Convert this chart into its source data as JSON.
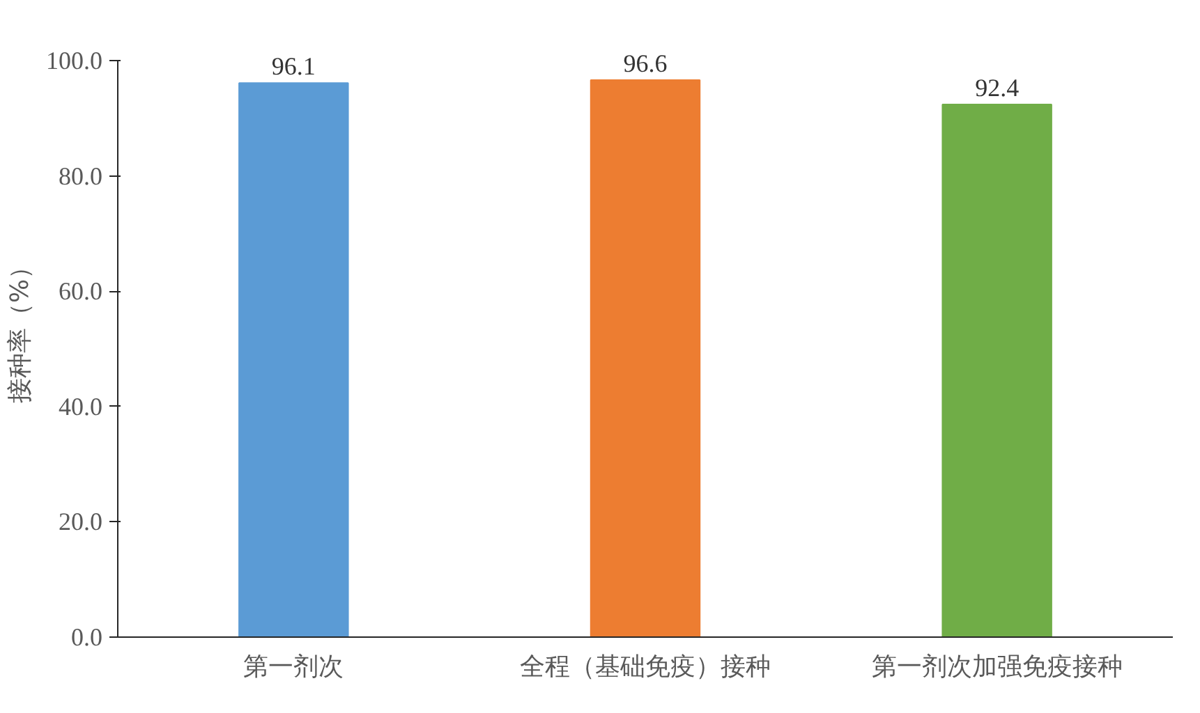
{
  "chart_data": {
    "type": "bar",
    "ylabel": "接种率（%）",
    "categories": [
      "第一剂次",
      "全程（基础免疫）接种",
      "第一剂次加强免疫接种"
    ],
    "values": [
      96.1,
      96.6,
      92.4
    ],
    "colors": [
      "#5b9bd5",
      "#ed7d31",
      "#70ad47"
    ],
    "ylim": [
      0,
      100
    ],
    "yticks": [
      {
        "value": 0,
        "label": "0.0"
      },
      {
        "value": 20,
        "label": "20.0"
      },
      {
        "value": 40,
        "label": "40.0"
      },
      {
        "value": 60,
        "label": "60.0"
      },
      {
        "value": 80,
        "label": "80.0"
      },
      {
        "value": 100,
        "label": "100.0"
      }
    ],
    "data_labels": true,
    "grid": false
  }
}
